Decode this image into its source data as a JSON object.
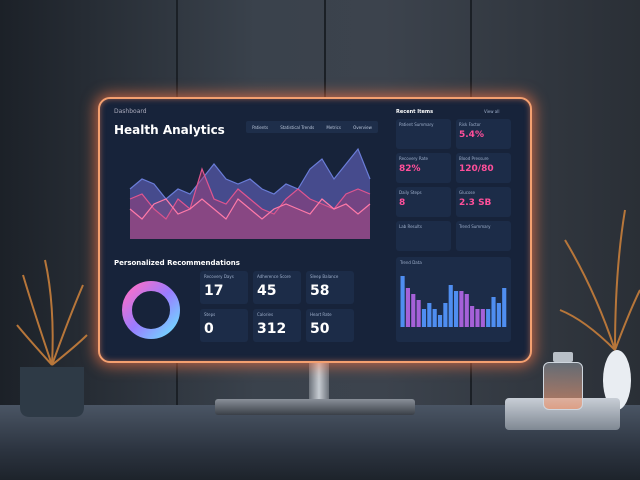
{
  "dashboard": {
    "title": "Health Analytics",
    "logo_text": "Dashboard",
    "tabs": [
      "Patients",
      "Statistical Trends",
      "Metrics",
      "Overview"
    ],
    "recommendations_heading": "Personalized Recommendations",
    "recommendation_cards": [
      {
        "label": "Recovery Days",
        "value": "17"
      },
      {
        "label": "Adherence Score",
        "value": "45"
      },
      {
        "label": "Sleep Balance",
        "value": "58"
      },
      {
        "label": "Steps",
        "value": "0"
      },
      {
        "label": "Calories",
        "value": "312"
      },
      {
        "label": "Heart Rate",
        "value": "50"
      }
    ],
    "side_heading": "Recent Items",
    "side_link": "View all",
    "side_cards": [
      {
        "label": "Patient Summary",
        "value": ""
      },
      {
        "label": "Risk Factor",
        "value": "5.4%"
      },
      {
        "label": "Recovery Rate",
        "value": "82%"
      },
      {
        "label": "Blood Pressure",
        "value": "120/80"
      },
      {
        "label": "Daily Steps",
        "value": "8"
      },
      {
        "label": "Glucose",
        "value": "2.3 SB"
      },
      {
        "label": "Lab Results",
        "value": ""
      },
      {
        "label": "Trend Summary",
        "value": ""
      }
    ],
    "bar_heading": "Trend Data",
    "donut_colors": [
      "#ff6ec7",
      "#9a7cff",
      "#6fdcff"
    ],
    "accent": "#ff4f9a",
    "chart_data": {
      "type": "area",
      "series": [
        {
          "values": [
            5,
            6,
            5.5,
            4,
            5,
            4.5,
            6,
            7.5,
            6,
            5.5,
            6,
            5,
            4.5,
            5.5,
            5,
            7,
            8,
            6,
            7.5,
            9,
            6
          ]
        },
        {
          "values": [
            4,
            4.5,
            3,
            2,
            4,
            3,
            7,
            4,
            3.5,
            5,
            4,
            3,
            2.5,
            4,
            5,
            4,
            3.5,
            3,
            4.5,
            5,
            4.5
          ]
        },
        {
          "values": [
            3,
            2,
            3.5,
            4,
            2.5,
            3,
            4,
            3,
            2,
            4,
            3,
            2,
            3,
            3.5,
            3,
            2.5,
            4,
            3,
            3.5,
            2.5,
            3.5
          ]
        }
      ]
    },
    "bar_data": {
      "type": "bar",
      "values": [
        85,
        65,
        55,
        45,
        30,
        40,
        30,
        20,
        40,
        70,
        60,
        60,
        55,
        35,
        30,
        30,
        30,
        50,
        40,
        65
      ]
    }
  }
}
